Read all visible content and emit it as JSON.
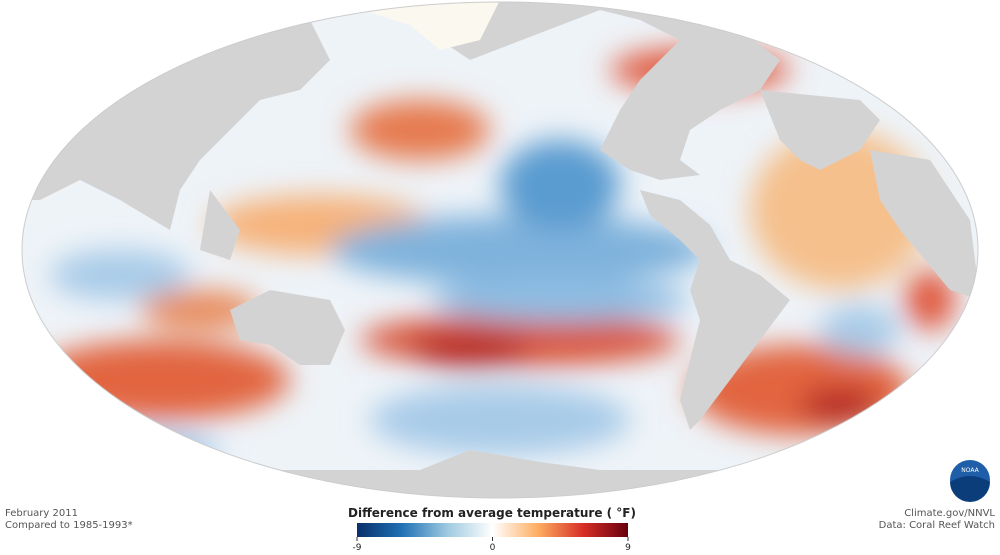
{
  "footer": {
    "date": "February 2011",
    "baseline": "Compared to 1985-1993*",
    "credit": "Climate.gov/NNVL",
    "source": "Data: Coral Reef Watch"
  },
  "logo": "NOAA",
  "colorbar": {
    "title": "Difference from average temperature ( °F)",
    "lim": [
      -9,
      9
    ],
    "ticks": [
      -9,
      0,
      9
    ],
    "colors": [
      "#08306b",
      "#2171b5",
      "#9ecae1",
      "#ffffff",
      "#fdae61",
      "#d73027",
      "#67000d"
    ]
  }
}
